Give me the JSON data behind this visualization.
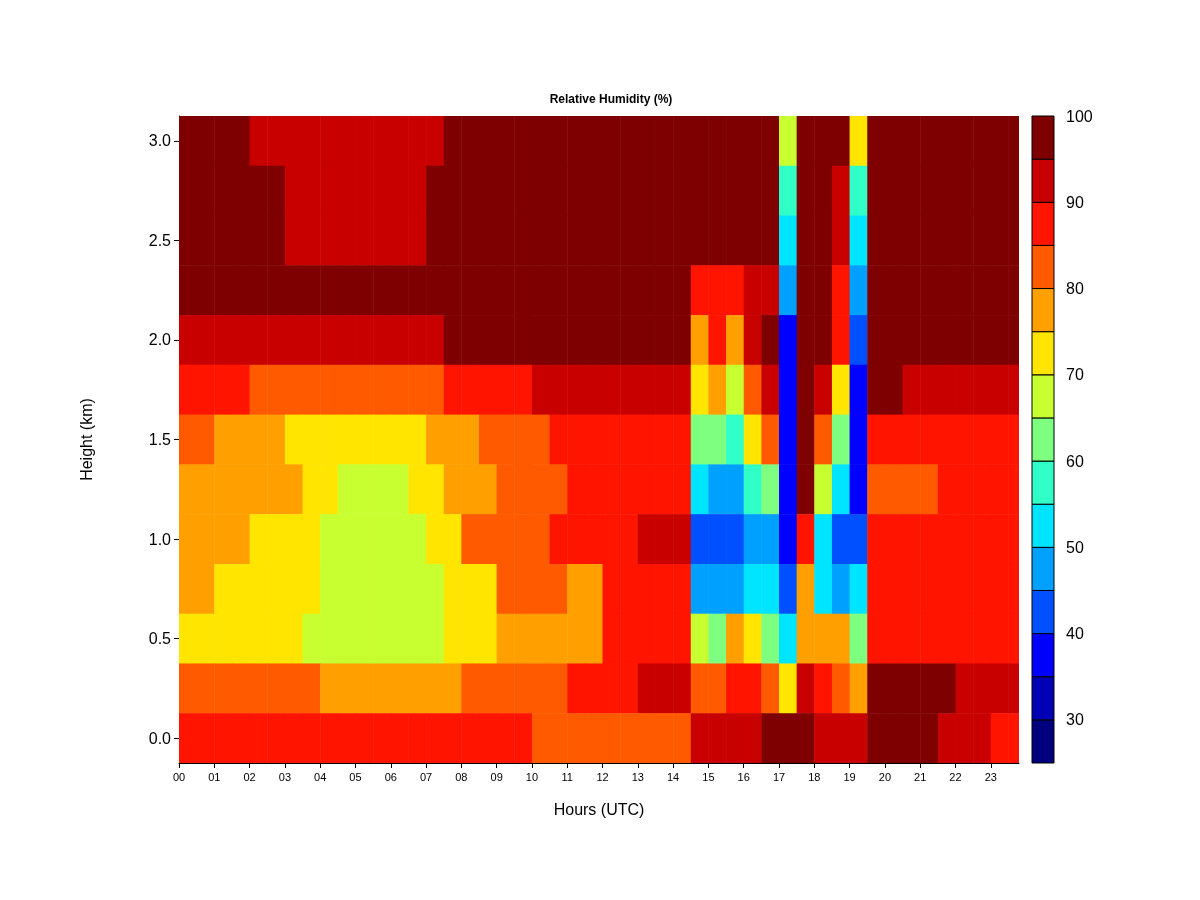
{
  "chart_data": {
    "type": "heatmap",
    "title": "Relative Humidity (%)",
    "xlabel": "Hours (UTC)",
    "ylabel": "Height (km)",
    "x": [
      0.25,
      0.75,
      1.25,
      1.75,
      2.25,
      2.75,
      3.25,
      3.75,
      4.25,
      4.75,
      5.25,
      5.75,
      6.25,
      6.75,
      7.25,
      7.75,
      8.25,
      8.75,
      9.25,
      9.75,
      10.25,
      10.75,
      11.25,
      11.75,
      12.25,
      12.75,
      13.25,
      13.75,
      14.25,
      14.75,
      15.25,
      15.75,
      16.25,
      16.75,
      17.25,
      17.75,
      18.25,
      18.75,
      19.25,
      19.75,
      20.25,
      20.75,
      21.25,
      21.75,
      22.25,
      22.75,
      23.25,
      23.75
    ],
    "y_categories": [
      "3.0",
      null,
      "2.5",
      null,
      "2.0",
      null,
      "1.5",
      null,
      "1.0",
      null,
      "0.5",
      null,
      "0.0"
    ],
    "cells": [
      [
        97,
        97,
        97,
        97,
        92,
        92,
        92,
        92,
        92,
        92,
        92,
        92,
        92,
        92,
        92,
        97,
        97,
        97,
        97,
        97,
        97,
        97,
        97,
        97,
        97,
        97,
        97,
        97,
        97,
        97,
        97,
        97,
        97,
        97,
        67,
        97,
        97,
        97,
        72,
        97,
        97,
        97,
        97,
        97,
        97,
        97,
        97,
        97
      ],
      [
        97,
        97,
        97,
        97,
        97,
        97,
        92,
        92,
        92,
        92,
        92,
        92,
        92,
        92,
        97,
        97,
        97,
        97,
        97,
        97,
        97,
        97,
        97,
        97,
        97,
        97,
        97,
        97,
        97,
        97,
        97,
        97,
        97,
        97,
        57,
        97,
        97,
        92,
        57,
        97,
        97,
        97,
        97,
        97,
        97,
        97,
        97,
        97
      ],
      [
        97,
        97,
        97,
        97,
        97,
        97,
        92,
        92,
        92,
        92,
        92,
        92,
        92,
        92,
        97,
        97,
        97,
        97,
        97,
        97,
        97,
        97,
        97,
        97,
        97,
        97,
        97,
        97,
        97,
        97,
        97,
        97,
        97,
        97,
        52,
        97,
        97,
        92,
        52,
        97,
        97,
        97,
        97,
        97,
        97,
        97,
        97,
        97
      ],
      [
        97,
        97,
        97,
        97,
        97,
        97,
        97,
        97,
        97,
        97,
        97,
        97,
        97,
        97,
        97,
        97,
        97,
        97,
        97,
        97,
        97,
        97,
        97,
        97,
        97,
        97,
        97,
        97,
        97,
        87,
        87,
        87,
        92,
        92,
        47,
        97,
        97,
        87,
        47,
        97,
        97,
        97,
        97,
        97,
        97,
        97,
        97,
        97
      ],
      [
        92,
        92,
        92,
        92,
        92,
        92,
        92,
        92,
        92,
        92,
        92,
        92,
        92,
        92,
        92,
        97,
        97,
        97,
        97,
        97,
        97,
        97,
        97,
        97,
        97,
        97,
        97,
        97,
        97,
        77,
        87,
        77,
        92,
        97,
        37,
        97,
        97,
        87,
        42,
        97,
        97,
        97,
        97,
        97,
        97,
        97,
        97,
        97
      ],
      [
        87,
        87,
        87,
        87,
        82,
        82,
        82,
        82,
        82,
        82,
        82,
        82,
        82,
        82,
        82,
        87,
        87,
        87,
        87,
        87,
        92,
        92,
        92,
        92,
        92,
        92,
        92,
        92,
        92,
        72,
        77,
        67,
        82,
        92,
        37,
        97,
        92,
        72,
        37,
        97,
        97,
        92,
        92,
        92,
        92,
        92,
        92,
        92
      ],
      [
        82,
        82,
        77,
        77,
        77,
        77,
        72,
        72,
        72,
        72,
        72,
        72,
        72,
        72,
        77,
        77,
        77,
        82,
        82,
        82,
        82,
        87,
        87,
        87,
        87,
        87,
        87,
        87,
        87,
        62,
        62,
        57,
        72,
        82,
        37,
        97,
        82,
        62,
        37,
        87,
        87,
        87,
        87,
        87,
        87,
        87,
        87,
        87
      ],
      [
        77,
        77,
        77,
        77,
        77,
        77,
        77,
        72,
        72,
        67,
        67,
        67,
        67,
        72,
        72,
        77,
        77,
        77,
        82,
        82,
        82,
        82,
        87,
        87,
        87,
        87,
        87,
        87,
        87,
        52,
        47,
        47,
        57,
        62,
        37,
        97,
        67,
        52,
        37,
        82,
        82,
        82,
        82,
        87,
        87,
        87,
        87,
        87
      ],
      [
        77,
        77,
        77,
        77,
        72,
        72,
        72,
        72,
        67,
        67,
        67,
        67,
        67,
        67,
        72,
        72,
        82,
        82,
        82,
        82,
        82,
        87,
        87,
        87,
        87,
        87,
        92,
        92,
        92,
        42,
        42,
        42,
        47,
        47,
        37,
        87,
        52,
        42,
        42,
        87,
        87,
        87,
        87,
        87,
        87,
        87,
        87,
        87
      ],
      [
        77,
        77,
        72,
        72,
        72,
        72,
        72,
        72,
        67,
        67,
        67,
        67,
        67,
        67,
        67,
        72,
        72,
        72,
        82,
        82,
        82,
        82,
        77,
        77,
        87,
        87,
        87,
        87,
        87,
        47,
        47,
        47,
        52,
        52,
        42,
        77,
        52,
        47,
        52,
        87,
        87,
        87,
        87,
        87,
        87,
        87,
        87,
        87
      ],
      [
        72,
        72,
        72,
        72,
        72,
        72,
        72,
        67,
        67,
        67,
        67,
        67,
        67,
        67,
        67,
        72,
        72,
        72,
        77,
        77,
        77,
        77,
        77,
        77,
        87,
        87,
        87,
        87,
        87,
        67,
        62,
        77,
        72,
        62,
        52,
        77,
        77,
        77,
        62,
        87,
        87,
        87,
        87,
        87,
        87,
        87,
        87,
        87
      ],
      [
        82,
        82,
        82,
        82,
        82,
        82,
        82,
        82,
        77,
        77,
        77,
        77,
        77,
        77,
        77,
        77,
        82,
        82,
        82,
        82,
        82,
        82,
        87,
        87,
        87,
        87,
        92,
        92,
        92,
        82,
        82,
        87,
        87,
        82,
        72,
        92,
        87,
        82,
        77,
        97,
        97,
        97,
        97,
        97,
        92,
        92,
        92,
        92
      ],
      [
        87,
        87,
        87,
        87,
        87,
        87,
        87,
        87,
        87,
        87,
        87,
        87,
        87,
        87,
        87,
        87,
        87,
        87,
        87,
        87,
        82,
        82,
        82,
        82,
        82,
        82,
        82,
        82,
        82,
        92,
        92,
        92,
        92,
        97,
        97,
        97,
        92,
        92,
        92,
        97,
        97,
        97,
        97,
        92,
        92,
        92,
        87,
        87
      ]
    ],
    "xlim": [
      0,
      23.8
    ],
    "xticks": [
      {
        "value": 0,
        "label": "00"
      },
      {
        "value": 1,
        "label": "01"
      },
      {
        "value": 2,
        "label": "02"
      },
      {
        "value": 3,
        "label": "03"
      },
      {
        "value": 4,
        "label": "04"
      },
      {
        "value": 5,
        "label": "05"
      },
      {
        "value": 6,
        "label": "06"
      },
      {
        "value": 7,
        "label": "07"
      },
      {
        "value": 8,
        "label": "08"
      },
      {
        "value": 9,
        "label": "09"
      },
      {
        "value": 10,
        "label": "10"
      },
      {
        "value": 11,
        "label": "11"
      },
      {
        "value": 12,
        "label": "12"
      },
      {
        "value": 13,
        "label": "13"
      },
      {
        "value": 14,
        "label": "14"
      },
      {
        "value": 15,
        "label": "15"
      },
      {
        "value": 16,
        "label": "16"
      },
      {
        "value": 17,
        "label": "17"
      },
      {
        "value": 18,
        "label": "18"
      },
      {
        "value": 19,
        "label": "19"
      },
      {
        "value": 20,
        "label": "20"
      },
      {
        "value": 21,
        "label": "21"
      },
      {
        "value": 22,
        "label": "22"
      },
      {
        "value": 23,
        "label": "23"
      }
    ],
    "clim": [
      25,
      100
    ],
    "cticks": [
      30,
      40,
      50,
      60,
      70,
      80,
      90,
      100
    ],
    "colors": [
      "#00007f",
      "#0000b5",
      "#0000ff",
      "#0050ff",
      "#00a0ff",
      "#00e5ff",
      "#30ffc8",
      "#7fff7f",
      "#c8ff30",
      "#ffe500",
      "#ffa000",
      "#ff5a00",
      "#ff1400",
      "#c80000",
      "#7f0000"
    ]
  }
}
